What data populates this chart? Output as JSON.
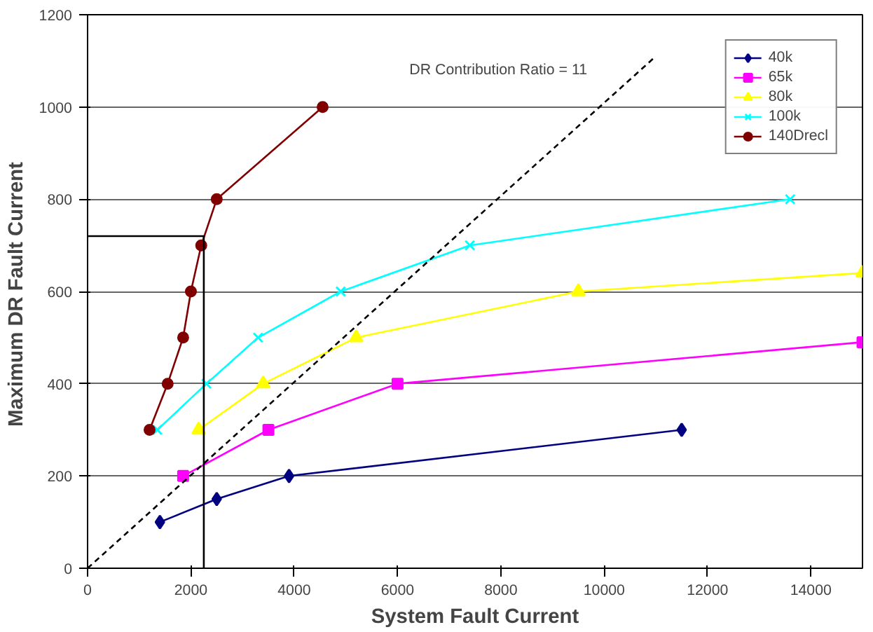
{
  "chart_data": {
    "type": "line",
    "xlabel": "System Fault Current",
    "ylabel": "Maximum DR Fault  Current",
    "xlim": [
      0,
      15000
    ],
    "ylim": [
      0,
      1200
    ],
    "xticks": [
      0,
      2000,
      4000,
      6000,
      8000,
      10000,
      12000,
      14000
    ],
    "yticks": [
      0,
      200,
      400,
      600,
      800,
      1000,
      1200
    ],
    "grid": "y",
    "legend": "top right",
    "annotations": [
      "DR Contribution Ratio = 11"
    ],
    "series": [
      {
        "name": "40k",
        "color": "#000080",
        "marker": "diamond",
        "x": [
          1400,
          2500,
          3900,
          11500
        ],
        "values": [
          100,
          150,
          200,
          300
        ]
      },
      {
        "name": "65k",
        "color": "#ff00ff",
        "marker": "square",
        "x": [
          1850,
          3500,
          6000,
          15000
        ],
        "values": [
          200,
          300,
          400,
          490
        ]
      },
      {
        "name": "80k",
        "color": "#ffff00",
        "marker": "triangle",
        "x": [
          2150,
          3400,
          5200,
          9500,
          15000
        ],
        "values": [
          300,
          400,
          500,
          600,
          640
        ]
      },
      {
        "name": "100k",
        "color": "#00ffff",
        "marker": "cross",
        "x": [
          1350,
          2300,
          3300,
          4900,
          7400,
          13600
        ],
        "values": [
          300,
          400,
          500,
          600,
          700,
          800
        ]
      },
      {
        "name": "140Drecl",
        "color": "#800000",
        "marker": "circle",
        "x": [
          1200,
          1550,
          1850,
          2000,
          2200,
          2500,
          4550
        ],
        "values": [
          300,
          400,
          500,
          600,
          700,
          800,
          1000
        ]
      },
      {
        "color": "#000000",
        "marker": "none",
        "x": [
          0,
          2250,
          2250
        ],
        "values": [
          720,
          720,
          0
        ]
      },
      {
        "color": "#000000",
        "marker": "none",
        "line_style": "dashed",
        "x": [
          0,
          11000
        ],
        "values": [
          0,
          1110
        ]
      }
    ]
  }
}
